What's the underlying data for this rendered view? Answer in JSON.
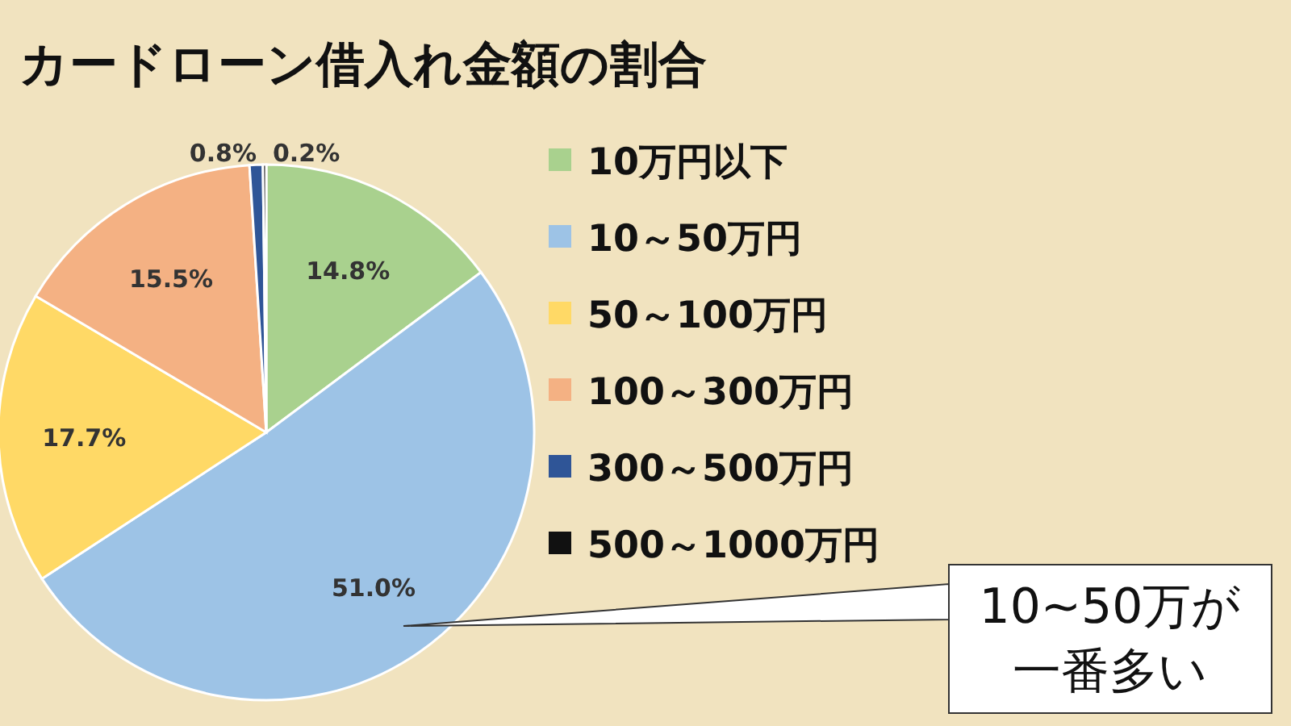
{
  "chart_data": {
    "type": "pie",
    "title": "カードローン借入れ金額の割合",
    "categories": [
      "10万円以下",
      "10～50万円",
      "50～100万円",
      "100～300万円",
      "300～500万円",
      "500～1000万円"
    ],
    "values": [
      14.8,
      51.0,
      17.7,
      15.5,
      0.8,
      0.2
    ],
    "value_labels": [
      "14.8%",
      "51.0%",
      "17.7%",
      "15.5%",
      "0.8%",
      "0.2%"
    ],
    "colors": [
      "#a9d18e",
      "#9dc3e6",
      "#ffd966",
      "#f4b183",
      "#2f5597",
      "#111111"
    ],
    "legend": "right",
    "annotations": [
      "10~50万が一番多い"
    ]
  }
}
